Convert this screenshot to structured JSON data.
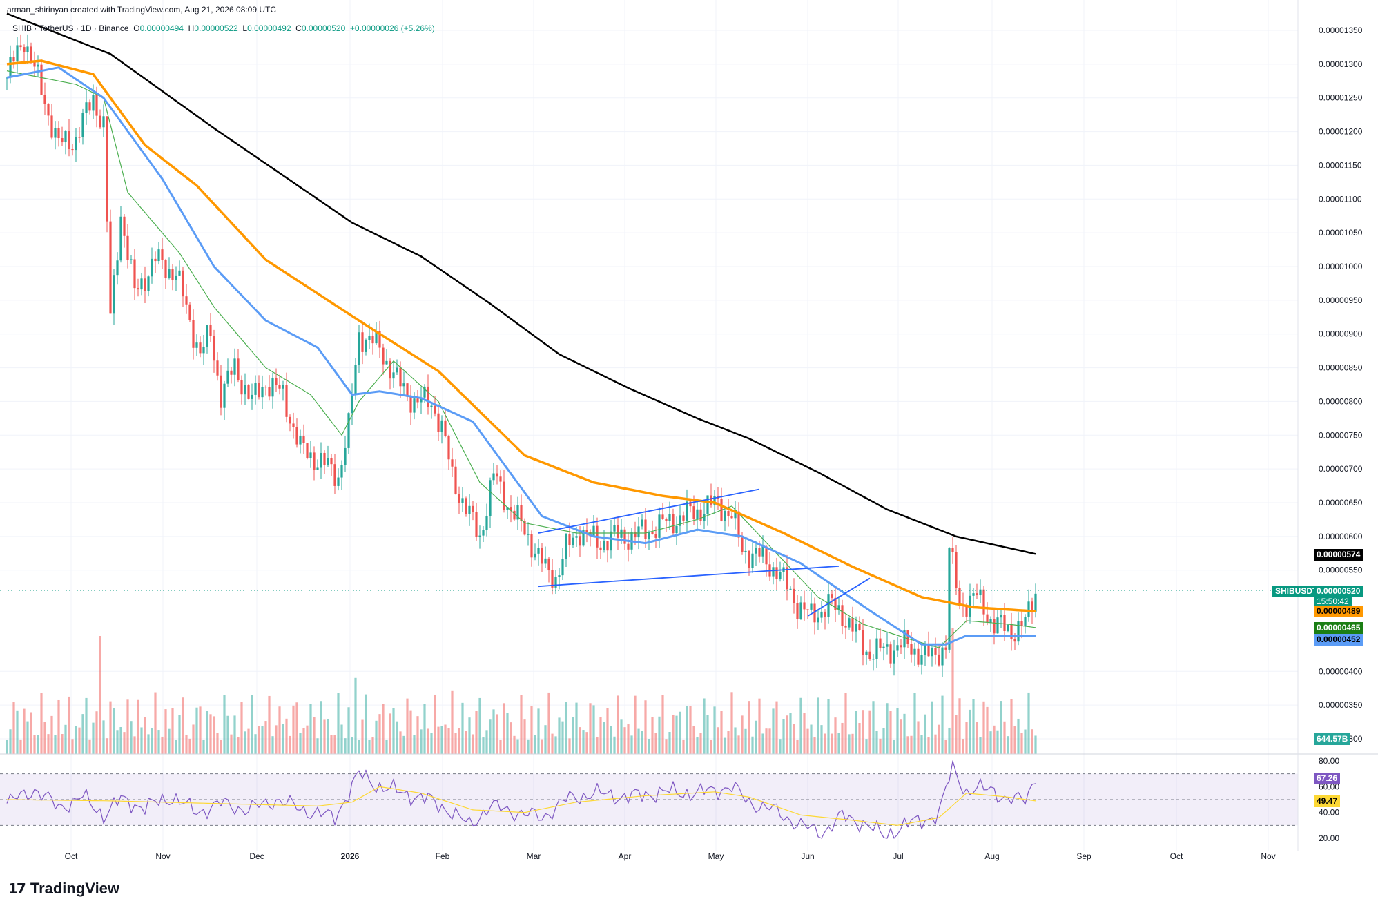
{
  "header": {
    "created_by": "arman_shirinyan created with TradingView.com, Aug 21, 2026 08:09 UTC"
  },
  "legend": {
    "symbol": "SHIB",
    "quote": "TetherUS",
    "interval": "1D",
    "exchange": "Binance",
    "o_label": "O",
    "o": "0.00000494",
    "h_label": "H",
    "h": "0.00000522",
    "l_label": "L",
    "l": "0.00000492",
    "c_label": "C",
    "c": "0.00000520",
    "change": "+0.00000026 (+5.26%)"
  },
  "price_badges": {
    "ma200": "0.00000574",
    "symbol": "SHIBUSDT",
    "last": "0.00000520",
    "countdown": "15:50:42",
    "ma100": "0.00000489",
    "ma20": "0.00000465",
    "ma50": "0.00000452",
    "volume": "644.57B"
  },
  "rsi_badges": {
    "rsi": "67.26",
    "rsi_ma": "49.47"
  },
  "footer": {
    "brand": "TradingView"
  },
  "colors": {
    "up": "#26a69a",
    "down": "#ef5350",
    "ma200": "#000000",
    "ma100": "#ff9800",
    "ma50": "#5b9cf6",
    "ma20": "#4caf50",
    "rsi": "#7e57c2",
    "rsi_ma": "#fdd835",
    "trendline": "#2962ff",
    "last_price": "#089981"
  },
  "chart_data": {
    "type": "candlestick",
    "price_axis": {
      "range": [
        2.7e-06,
        1.36e-05
      ],
      "ticks": [
        "0.00001350",
        "0.00001300",
        "0.00001250",
        "0.00001200",
        "0.00001150",
        "0.00001100",
        "0.00001050",
        "0.00001000",
        "0.00000950",
        "0.00000900",
        "0.00000850",
        "0.00000800",
        "0.00000750",
        "0.00000700",
        "0.00000650",
        "0.00000600",
        "0.00000550",
        "0.00000400",
        "0.00000350",
        "0.00000300"
      ]
    },
    "rsi_axis": {
      "ticks": [
        "80.00",
        "60.00",
        "40.00",
        "20.00"
      ],
      "bands": [
        70,
        50,
        30
      ]
    },
    "time_axis": {
      "labels": [
        "Oct",
        "Nov",
        "Dec",
        "2026",
        "Feb",
        "Mar",
        "Apr",
        "May",
        "Jun",
        "Jul",
        "Aug",
        "Sep",
        "Oct",
        "Nov"
      ],
      "bold": [
        "2026"
      ]
    },
    "price_path": [
      [
        0,
        1.28e-05
      ],
      [
        5,
        1.34e-05
      ],
      [
        10,
        1.26e-05
      ],
      [
        15,
        1.18e-05
      ],
      [
        20,
        1.19e-05
      ],
      [
        25,
        1.25e-05
      ],
      [
        28,
        1.21e-05
      ],
      [
        30,
        9.2e-06
      ],
      [
        33,
        1.08e-05
      ],
      [
        37,
        9.6e-06
      ],
      [
        43,
        1.01e-05
      ],
      [
        49,
        9.9e-06
      ],
      [
        53,
        9.2e-06
      ],
      [
        56,
        8.7e-06
      ],
      [
        59,
        9e-06
      ],
      [
        62,
        8.1e-06
      ],
      [
        66,
        8.5e-06
      ],
      [
        71,
        8e-06
      ],
      [
        75,
        8.3e-06
      ],
      [
        80,
        8.1e-06
      ],
      [
        85,
        7.3e-06
      ],
      [
        91,
        7.1e-06
      ],
      [
        96,
        6.9e-06
      ],
      [
        99,
        7.6e-06
      ],
      [
        102,
        9e-06
      ],
      [
        108,
        8.8e-06
      ],
      [
        113,
        8.3e-06
      ],
      [
        118,
        8e-06
      ],
      [
        123,
        8e-06
      ],
      [
        126,
        7.6e-06
      ],
      [
        129,
        6.9e-06
      ],
      [
        133,
        6.4e-06
      ],
      [
        137,
        6e-06
      ],
      [
        141,
        6.9e-06
      ],
      [
        146,
        6.4e-06
      ],
      [
        151,
        6e-06
      ],
      [
        156,
        5.5e-06
      ],
      [
        159,
        5.4e-06
      ],
      [
        162,
        5.8e-06
      ],
      [
        166,
        6.1e-06
      ],
      [
        171,
        5.9e-06
      ],
      [
        176,
        6e-06
      ],
      [
        181,
        6e-06
      ],
      [
        186,
        6.1e-06
      ],
      [
        191,
        6.2e-06
      ],
      [
        196,
        6.3e-06
      ],
      [
        201,
        6.4e-06
      ],
      [
        206,
        6.5e-06
      ],
      [
        210,
        6.3e-06
      ],
      [
        213,
        5.8e-06
      ],
      [
        218,
        5.7e-06
      ],
      [
        223,
        5.5e-06
      ],
      [
        229,
        5e-06
      ],
      [
        233,
        4.8e-06
      ],
      [
        238,
        5e-06
      ],
      [
        243,
        4.8e-06
      ],
      [
        249,
        4.3e-06
      ],
      [
        254,
        4.3e-06
      ],
      [
        259,
        4.4e-06
      ],
      [
        264,
        4.3e-06
      ],
      [
        268,
        4.2e-06
      ],
      [
        272,
        4.4e-06
      ],
      [
        273,
        5.8e-06
      ],
      [
        276,
        5e-06
      ],
      [
        281,
        5.1e-06
      ],
      [
        286,
        4.7e-06
      ],
      [
        291,
        4.6e-06
      ],
      [
        295,
        4.7e-06
      ],
      [
        298,
        5.2e-06
      ]
    ],
    "ma200": [
      [
        0,
        1.375e-05
      ],
      [
        30,
        1.315e-05
      ],
      [
        60,
        1.205e-05
      ],
      [
        100,
        1.065e-05
      ],
      [
        120,
        1.015e-05
      ],
      [
        140,
        9.45e-06
      ],
      [
        160,
        8.7e-06
      ],
      [
        180,
        8.2e-06
      ],
      [
        200,
        7.75e-06
      ],
      [
        215,
        7.45e-06
      ],
      [
        235,
        6.95e-06
      ],
      [
        255,
        6.4e-06
      ],
      [
        275,
        6e-06
      ],
      [
        298,
        5.74e-06
      ]
    ],
    "ma100": [
      [
        0,
        1.3e-05
      ],
      [
        10,
        1.305e-05
      ],
      [
        25,
        1.285e-05
      ],
      [
        40,
        1.18e-05
      ],
      [
        55,
        1.12e-05
      ],
      [
        75,
        1.01e-05
      ],
      [
        90,
        9.6e-06
      ],
      [
        105,
        9.1e-06
      ],
      [
        125,
        8.45e-06
      ],
      [
        150,
        7.2e-06
      ],
      [
        170,
        6.8e-06
      ],
      [
        190,
        6.6e-06
      ],
      [
        205,
        6.5e-06
      ],
      [
        225,
        6.05e-06
      ],
      [
        245,
        5.55e-06
      ],
      [
        265,
        5.1e-06
      ],
      [
        280,
        4.95e-06
      ],
      [
        298,
        4.89e-06
      ]
    ],
    "ma50": [
      [
        0,
        1.28e-05
      ],
      [
        15,
        1.295e-05
      ],
      [
        28,
        1.25e-05
      ],
      [
        45,
        1.13e-05
      ],
      [
        60,
        1e-05
      ],
      [
        75,
        9.2e-06
      ],
      [
        90,
        8.8e-06
      ],
      [
        100,
        8.1e-06
      ],
      [
        108,
        8.15e-06
      ],
      [
        120,
        8.05e-06
      ],
      [
        135,
        7.7e-06
      ],
      [
        155,
        6.3e-06
      ],
      [
        170,
        6e-06
      ],
      [
        185,
        5.9e-06
      ],
      [
        200,
        6.1e-06
      ],
      [
        213,
        6e-06
      ],
      [
        230,
        5.6e-06
      ],
      [
        250,
        4.9e-06
      ],
      [
        265,
        4.4e-06
      ],
      [
        272,
        4.4e-06
      ],
      [
        278,
        4.53e-06
      ],
      [
        298,
        4.52e-06
      ]
    ],
    "ma20": [
      [
        0,
        1.29e-05
      ],
      [
        20,
        1.27e-05
      ],
      [
        28,
        1.25e-05
      ],
      [
        35,
        1.11e-05
      ],
      [
        50,
        1.02e-05
      ],
      [
        60,
        9.4e-06
      ],
      [
        75,
        8.5e-06
      ],
      [
        88,
        8.1e-06
      ],
      [
        97,
        7.5e-06
      ],
      [
        102,
        8e-06
      ],
      [
        112,
        8.6e-06
      ],
      [
        125,
        8e-06
      ],
      [
        137,
        6.8e-06
      ],
      [
        150,
        6.2e-06
      ],
      [
        165,
        6.05e-06
      ],
      [
        185,
        6.05e-06
      ],
      [
        200,
        6.25e-06
      ],
      [
        210,
        6.45e-06
      ],
      [
        222,
        5.8e-06
      ],
      [
        235,
        5.1e-06
      ],
      [
        248,
        4.7e-06
      ],
      [
        260,
        4.5e-06
      ],
      [
        270,
        4.35e-06
      ],
      [
        278,
        4.75e-06
      ],
      [
        290,
        4.7e-06
      ],
      [
        298,
        4.65e-06
      ]
    ],
    "rsi": [
      [
        0,
        47
      ],
      [
        8,
        58
      ],
      [
        15,
        44
      ],
      [
        22,
        52
      ],
      [
        28,
        38
      ],
      [
        33,
        50
      ],
      [
        40,
        44
      ],
      [
        48,
        52
      ],
      [
        55,
        40
      ],
      [
        62,
        47
      ],
      [
        70,
        42
      ],
      [
        78,
        50
      ],
      [
        86,
        42
      ],
      [
        95,
        36
      ],
      [
        102,
        70
      ],
      [
        108,
        60
      ],
      [
        115,
        55
      ],
      [
        122,
        50
      ],
      [
        128,
        42
      ],
      [
        134,
        30
      ],
      [
        140,
        45
      ],
      [
        148,
        40
      ],
      [
        155,
        36
      ],
      [
        162,
        50
      ],
      [
        170,
        55
      ],
      [
        180,
        52
      ],
      [
        190,
        56
      ],
      [
        200,
        55
      ],
      [
        210,
        60
      ],
      [
        215,
        48
      ],
      [
        222,
        42
      ],
      [
        230,
        30
      ],
      [
        236,
        24
      ],
      [
        242,
        37
      ],
      [
        248,
        32
      ],
      [
        254,
        22
      ],
      [
        262,
        32
      ],
      [
        270,
        38
      ],
      [
        274,
        77
      ],
      [
        278,
        55
      ],
      [
        285,
        60
      ],
      [
        290,
        48
      ],
      [
        295,
        52
      ],
      [
        298,
        67
      ]
    ],
    "rsi_ma": [
      [
        0,
        50
      ],
      [
        30,
        49
      ],
      [
        60,
        47
      ],
      [
        90,
        45
      ],
      [
        100,
        48
      ],
      [
        108,
        60
      ],
      [
        120,
        55
      ],
      [
        135,
        42
      ],
      [
        150,
        40
      ],
      [
        165,
        48
      ],
      [
        185,
        53
      ],
      [
        205,
        56
      ],
      [
        215,
        52
      ],
      [
        230,
        38
      ],
      [
        245,
        34
      ],
      [
        258,
        30
      ],
      [
        270,
        36
      ],
      [
        278,
        55
      ],
      [
        290,
        52
      ],
      [
        298,
        49
      ]
    ],
    "trendlines": [
      {
        "from": [
          154,
          6.05e-06
        ],
        "to": [
          218,
          6.7e-06
        ]
      },
      {
        "from": [
          154,
          5.26e-06
        ],
        "to": [
          241,
          5.56e-06
        ]
      },
      {
        "from": [
          232,
          4.82e-06
        ],
        "to": [
          250,
          5.38e-06
        ]
      }
    ],
    "volume_spikes": [
      [
        27,
        0.9
      ],
      [
        101,
        0.58
      ],
      [
        129,
        0.48
      ],
      [
        274,
        0.96
      ],
      [
        280,
        0.42
      ]
    ]
  }
}
